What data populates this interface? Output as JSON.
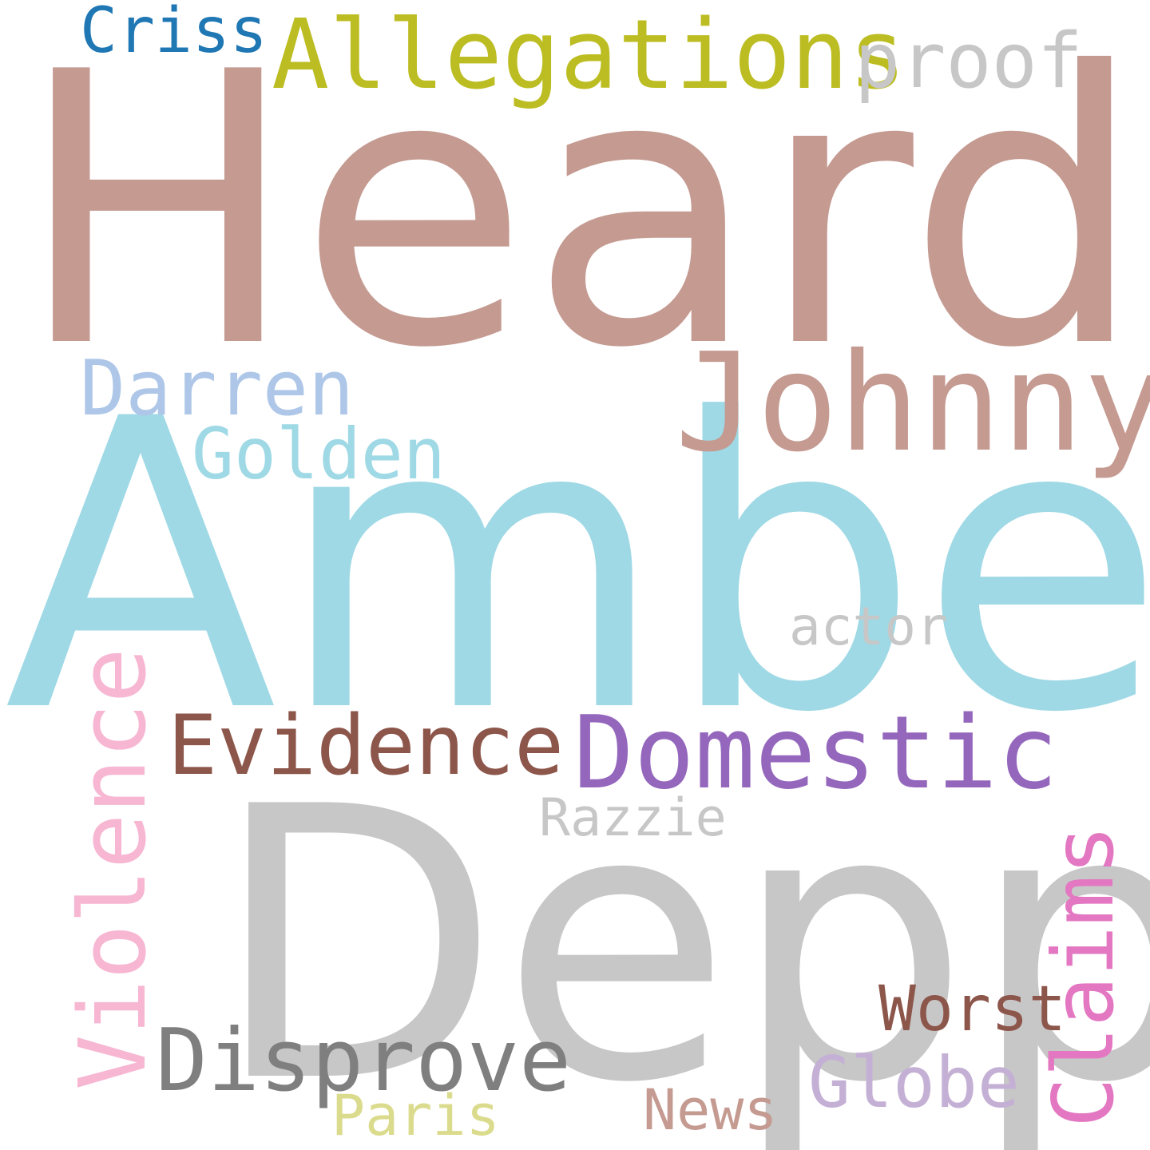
{
  "words": {
    "heard": {
      "text": "Heard",
      "color": "#c49a91"
    },
    "amber": {
      "text": "Amber",
      "color": "#9fd9e5"
    },
    "depp": {
      "text": "Depp",
      "color": "#c7c7c7"
    },
    "johnny": {
      "text": "Johnny",
      "color": "#c49a91"
    },
    "allegations": {
      "text": "Allegations",
      "color": "#bcbd22"
    },
    "criss": {
      "text": "Criss",
      "color": "#1f77b4"
    },
    "proof": {
      "text": "proof",
      "color": "#c7c7c7"
    },
    "darren": {
      "text": "Darren",
      "color": "#aec7e8"
    },
    "golden": {
      "text": "Golden",
      "color": "#9fd9e5"
    },
    "actor": {
      "text": "actor",
      "color": "#c7c7c7"
    },
    "violence": {
      "text": "Violence",
      "color": "#f7b6d2"
    },
    "evidence": {
      "text": "Evidence",
      "color": "#8c564b"
    },
    "domestic": {
      "text": "Domestic",
      "color": "#9467bd"
    },
    "razzie": {
      "text": "Razzie",
      "color": "#c7c7c7"
    },
    "claims": {
      "text": "Claims",
      "color": "#e377c2"
    },
    "worst": {
      "text": "Worst",
      "color": "#8c564b"
    },
    "disprove": {
      "text": "Disprove",
      "color": "#7f7f7f"
    },
    "globe": {
      "text": "Globe",
      "color": "#c5b0d5"
    },
    "paris": {
      "text": "Paris",
      "color": "#dbdb8d"
    },
    "news": {
      "text": "News",
      "color": "#c49a91"
    }
  }
}
